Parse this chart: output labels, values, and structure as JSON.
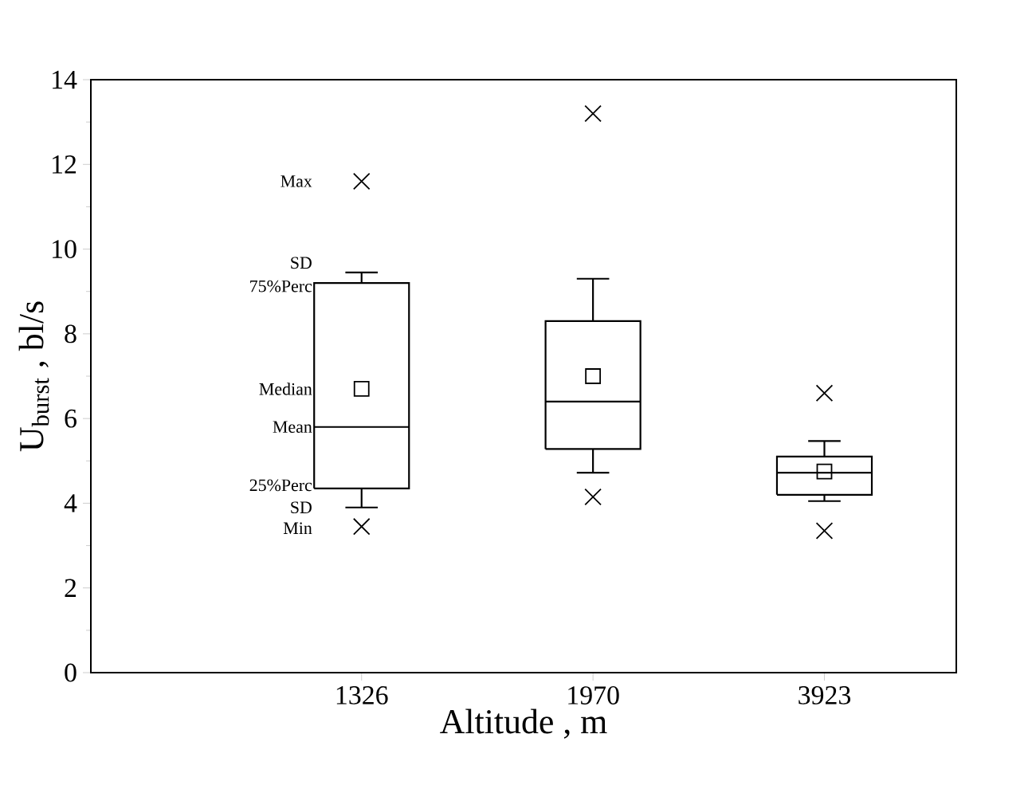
{
  "chart_data": {
    "type": "box",
    "xlabel": "Altitude , m",
    "ylabel": "U$_{burst}$ , bl/s",
    "categories": [
      "1326",
      "1970",
      "3923"
    ],
    "boxes": [
      {
        "low": 3.9,
        "q1": 4.35,
        "median": 5.8,
        "q3": 9.2,
        "high": 9.45,
        "mean": 6.7,
        "outliers": [
          11.6,
          3.45
        ]
      },
      {
        "low": 4.72,
        "q1": 5.28,
        "median": 6.4,
        "q3": 8.3,
        "high": 9.3,
        "mean": 7.0,
        "outliers": [
          13.2,
          4.15
        ]
      },
      {
        "low": 4.05,
        "q1": 4.2,
        "median": 4.72,
        "q3": 5.1,
        "high": 5.47,
        "mean": 4.75,
        "outliers": [
          6.6,
          3.35
        ]
      }
    ],
    "ylim": [
      0,
      14
    ],
    "yticks": [
      0,
      2,
      4,
      6,
      8,
      10,
      12,
      14
    ],
    "annotations": [
      "Max",
      "SD",
      "75%Perc",
      "Median",
      "Mean",
      "25%Perc",
      "SD",
      "Min"
    ]
  }
}
